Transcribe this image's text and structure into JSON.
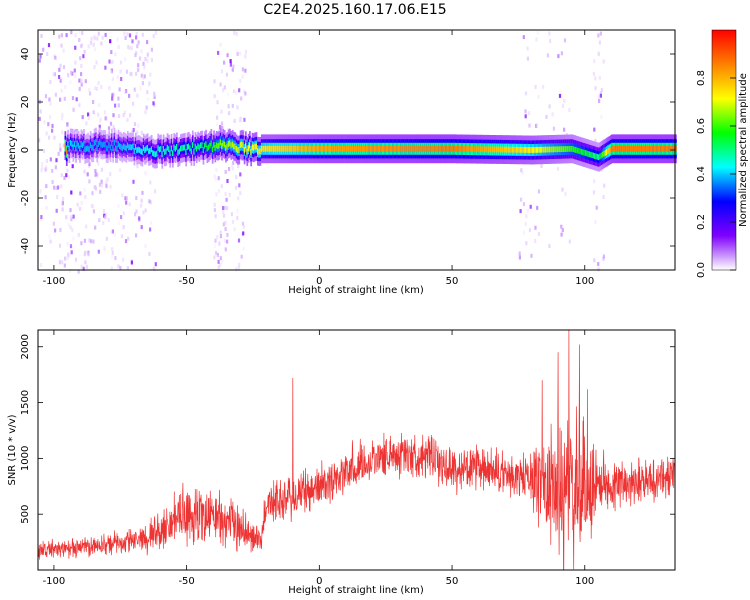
{
  "chart_data": [
    {
      "type": "heatmap",
      "title": "C2E4.2025.160.17.06.E15",
      "xlabel": "Height of straight line (km)",
      "ylabel": "Frequency (Hz)",
      "xlim": [
        -106,
        134
      ],
      "ylim": [
        -50,
        50
      ],
      "x_ticks": [
        "-100",
        "-50",
        "0",
        "50",
        "100"
      ],
      "y_ticks": [
        "-40",
        "-20",
        "0",
        "20",
        "40"
      ],
      "colorbar": {
        "label": "Normalized spectral amplitude",
        "range": [
          0,
          1
        ],
        "ticks": [
          "0.0",
          "0.2",
          "0.4",
          "0.6",
          "0.8"
        ],
        "colormap": [
          "#ffffff",
          "#7f00ff",
          "#0000ff",
          "#00ffff",
          "#00ff00",
          "#ffff00",
          "#ff8000",
          "#ff0000"
        ]
      },
      "main_line": [
        {
          "x": -95,
          "y": 1.5,
          "amp": 0.4
        },
        {
          "x": -80,
          "y": 2.0,
          "amp": 0.35
        },
        {
          "x": -62,
          "y": -0.5,
          "amp": 0.45
        },
        {
          "x": -45,
          "y": 1.0,
          "amp": 0.5
        },
        {
          "x": -38,
          "y": 2.0,
          "amp": 0.65
        },
        {
          "x": -25,
          "y": 0.5,
          "amp": 0.75
        },
        {
          "x": 0,
          "y": 0.5,
          "amp": 0.85
        },
        {
          "x": 50,
          "y": 0.5,
          "amp": 0.9
        },
        {
          "x": 80,
          "y": 0.0,
          "amp": 0.75
        },
        {
          "x": 95,
          "y": 0.5,
          "amp": 0.6
        },
        {
          "x": 105,
          "y": -3.0,
          "amp": 0.5
        },
        {
          "x": 110,
          "y": 0.5,
          "amp": 0.9
        },
        {
          "x": 134,
          "y": 0.5,
          "amp": 0.9
        }
      ],
      "noise_bands": [
        {
          "x_range": [
            -106,
            -62
          ],
          "density": 0.9
        },
        {
          "x_range": [
            -40,
            -28
          ],
          "density": 1.0
        },
        {
          "x_range": [
            75,
            94
          ],
          "density": 0.35
        },
        {
          "x_range": [
            103,
            107
          ],
          "density": 0.8
        }
      ]
    },
    {
      "type": "line",
      "xlabel": "Height of straight line (km)",
      "ylabel": "SNR (10 * v/v)",
      "xlim": [
        -106,
        134
      ],
      "ylim": [
        0,
        2150
      ],
      "x_ticks": [
        "-100",
        "-50",
        "0",
        "50",
        "100"
      ],
      "y_ticks": [
        "500",
        "1000",
        "1500",
        "2000"
      ],
      "color": "#ee3333",
      "series": [
        {
          "x": [
            -106,
            -90,
            -70,
            -60,
            -50,
            -40,
            -30,
            -22,
            -20,
            -10,
            0,
            10,
            20,
            30,
            40,
            50,
            60,
            70,
            80,
            85,
            90,
            95,
            100,
            105,
            110,
            115,
            120,
            125,
            134
          ],
          "values": [
            180,
            200,
            260,
            350,
            500,
            480,
            380,
            250,
            600,
            640,
            760,
            880,
            1000,
            1040,
            1020,
            900,
            900,
            850,
            820,
            800,
            700,
            650,
            700,
            800,
            750,
            780,
            820,
            800,
            850
          ],
          "spread": [
            100,
            110,
            140,
            220,
            350,
            320,
            260,
            150,
            260,
            260,
            250,
            260,
            240,
            250,
            240,
            250,
            250,
            260,
            280,
            700,
            800,
            900,
            800,
            350,
            280,
            260,
            260,
            250,
            260
          ],
          "peaks": [
            {
              "x": -10,
              "y": 1720
            },
            {
              "x": 84,
              "y": 1700
            },
            {
              "x": 90,
              "y": 1950
            },
            {
              "x": 94,
              "y": 2150
            },
            {
              "x": 98,
              "y": 2020
            },
            {
              "x": 101,
              "y": 1620
            }
          ]
        }
      ]
    }
  ]
}
